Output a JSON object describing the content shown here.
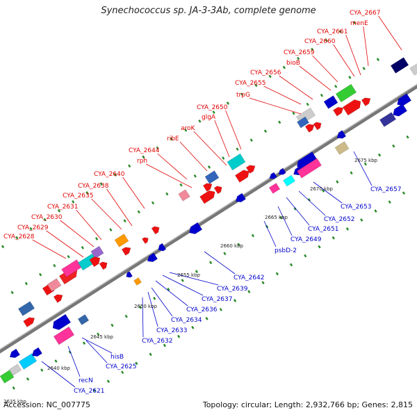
{
  "title": "Synechococcus sp. JA-3-3Ab, complete genome",
  "footer": {
    "accession": "Accession: NC_007775",
    "info": "Topology: circular; Length: 2,932,766 bp; Genes: 2,815"
  },
  "colors": {
    "top_label": "#e00000",
    "bottom_label": "#0000cc",
    "backbone": "#888888",
    "dots": "#2a8a2a"
  },
  "scale_labels": [
    "2635 kbp",
    "2640 kbp",
    "2645 kbp",
    "2650 kbp",
    "2655 kbp",
    "2660 kbp",
    "2665 kbp",
    "2670 kbp",
    "2675 kbp"
  ],
  "top_labels": [
    "CYA_2628",
    "CYA_2629",
    "CYA_2630",
    "CYA_2631",
    "CYA_2635",
    "CYA_2638",
    "CYA_2640",
    "rph",
    "CYA_2644",
    "ribE",
    "aroK",
    "glgA",
    "CYA_2650",
    "trpG",
    "CYA_2655",
    "CYA_2656",
    "bioB",
    "CYA_2659",
    "CYA_2660",
    "CYA_2661",
    "menE",
    "CYA_2667"
  ],
  "bottom_labels": [
    "CYA_2621",
    "recN",
    "CYA_2625",
    "hisB",
    "CYA_2632",
    "CYA_2633",
    "CYA_2634",
    "CYA_2636",
    "CYA_2637",
    "CYA_2639",
    "CYA_2642",
    "psbD-2",
    "CYA_2649",
    "CYA_2651",
    "CYA_2652",
    "CYA_2653",
    "CYA_2657"
  ]
}
